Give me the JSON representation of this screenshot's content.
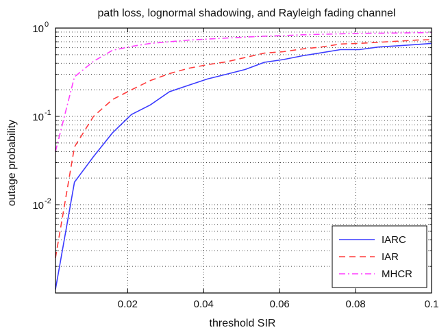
{
  "chart_data": {
    "type": "line",
    "title": "path loss, lognormal shadowing, and Rayleigh fading channel",
    "xlabel": "threshold SIR",
    "ylabel": "outage probability",
    "xlim": [
      0.001,
      0.1
    ],
    "ylim": [
      0.001,
      1
    ],
    "yscale": "log",
    "grid": true,
    "legend_position": "bottom-right",
    "x_ticks": [
      0.02,
      0.04,
      0.06,
      0.08,
      0.1
    ],
    "x_tick_labels": [
      "0.02",
      "0.04",
      "0.06",
      "0.08",
      "0.1"
    ],
    "y_ticks": [
      0.001,
      0.01,
      0.1,
      1
    ],
    "y_tick_labels": [
      {
        "base": "",
        "exp": ""
      },
      {
        "base": "10",
        "exp": "-2"
      },
      {
        "base": "10",
        "exp": "-1"
      },
      {
        "base": "10",
        "exp": "0"
      }
    ],
    "series": [
      {
        "name": "IARC",
        "color": "#3b3bff",
        "dash": "solid",
        "x": [
          0.001,
          0.006,
          0.011,
          0.016,
          0.021,
          0.026,
          0.031,
          0.036,
          0.041,
          0.046,
          0.051,
          0.056,
          0.061,
          0.066,
          0.071,
          0.076,
          0.081,
          0.086,
          0.091,
          0.096,
          0.1
        ],
        "y": [
          0.0011,
          0.018,
          0.035,
          0.065,
          0.105,
          0.135,
          0.19,
          0.225,
          0.265,
          0.3,
          0.34,
          0.41,
          0.44,
          0.485,
          0.525,
          0.57,
          0.57,
          0.61,
          0.63,
          0.65,
          0.67
        ]
      },
      {
        "name": "IAR",
        "color": "#ff3b3b",
        "dash": "dashed",
        "x": [
          0.001,
          0.006,
          0.011,
          0.016,
          0.021,
          0.026,
          0.031,
          0.036,
          0.041,
          0.046,
          0.051,
          0.056,
          0.061,
          0.066,
          0.071,
          0.076,
          0.081,
          0.086,
          0.091,
          0.096,
          0.1
        ],
        "y": [
          0.0025,
          0.045,
          0.1,
          0.155,
          0.2,
          0.255,
          0.305,
          0.35,
          0.385,
          0.415,
          0.465,
          0.52,
          0.54,
          0.58,
          0.61,
          0.66,
          0.67,
          0.69,
          0.71,
          0.73,
          0.74
        ]
      },
      {
        "name": "MHCR",
        "color": "#ff3bff",
        "dash": "dashdot",
        "x": [
          0.001,
          0.006,
          0.011,
          0.016,
          0.021,
          0.026,
          0.031,
          0.036,
          0.041,
          0.046,
          0.051,
          0.056,
          0.061,
          0.066,
          0.071,
          0.076,
          0.081,
          0.086,
          0.091,
          0.096,
          0.1
        ],
        "y": [
          0.04,
          0.28,
          0.42,
          0.56,
          0.62,
          0.67,
          0.7,
          0.73,
          0.75,
          0.77,
          0.79,
          0.81,
          0.82,
          0.84,
          0.85,
          0.86,
          0.87,
          0.875,
          0.88,
          0.885,
          0.89
        ]
      }
    ]
  }
}
